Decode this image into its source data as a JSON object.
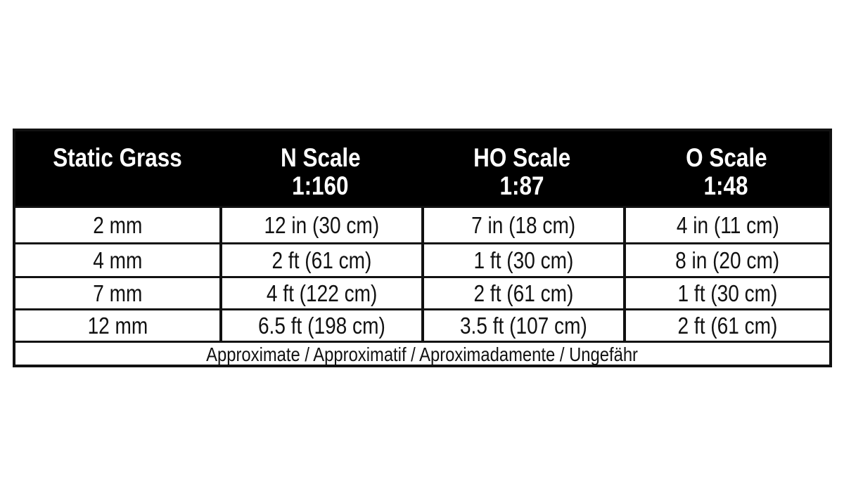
{
  "table": {
    "headers": [
      {
        "line1": "Static Grass",
        "line2": ""
      },
      {
        "line1": "N Scale",
        "line2": "1:160"
      },
      {
        "line1": "HO Scale",
        "line2": "1:87"
      },
      {
        "line1": "O Scale",
        "line2": "1:48"
      }
    ],
    "rows": [
      [
        "2 mm",
        "12 in (30 cm)",
        "7 in (18 cm)",
        "4 in (11 cm)"
      ],
      [
        "4 mm",
        "2 ft (61 cm)",
        "1 ft (30 cm)",
        "8 in (20 cm)"
      ],
      [
        "7 mm",
        "4 ft (122 cm)",
        "2 ft (61 cm)",
        "1 ft (30 cm)"
      ],
      [
        "12 mm",
        "6.5 ft (198 cm)",
        "3.5 ft (107 cm)",
        "2 ft (61 cm)"
      ]
    ],
    "footnote": "Approximate / Approximatif / Aproximadamente / Ungefähr"
  },
  "colors": {
    "header_bg": "#000000",
    "header_text": "#ffffff",
    "border": "#111111"
  }
}
